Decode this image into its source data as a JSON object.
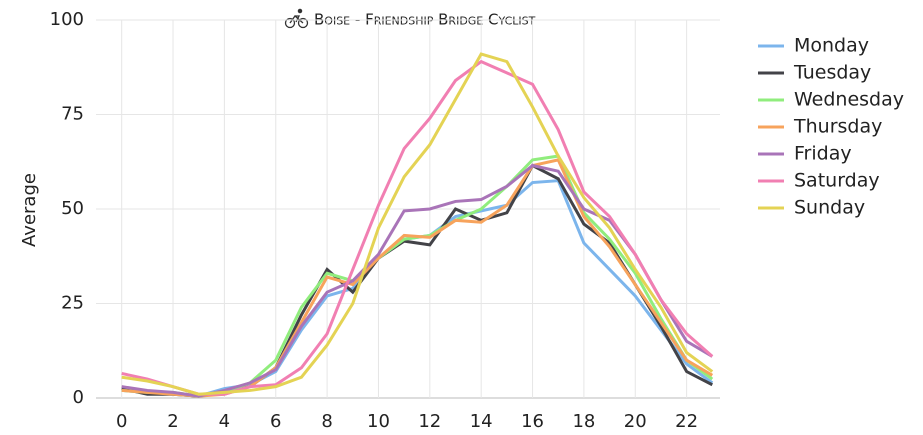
{
  "chart_data": {
    "type": "line",
    "title": "Boise - Friendship Bridge Cyclist",
    "y_label": "Average",
    "x": [
      0,
      1,
      2,
      3,
      4,
      5,
      6,
      7,
      8,
      9,
      10,
      11,
      12,
      13,
      14,
      15,
      16,
      17,
      18,
      19,
      20,
      21,
      22,
      23
    ],
    "xlim": [
      -1,
      23.3
    ],
    "xticks": [
      0,
      2,
      4,
      6,
      8,
      10,
      12,
      14,
      16,
      18,
      20,
      22
    ],
    "ylim": [
      0,
      100
    ],
    "yticks": [
      0,
      25,
      50,
      75,
      100
    ],
    "grid": true,
    "legend": "right",
    "series": [
      {
        "name": "Monday",
        "color": "#7cb5ec",
        "values": [
          2,
          1.5,
          1,
          0.5,
          2.5,
          3.5,
          7,
          18,
          27,
          29,
          37,
          42,
          43,
          48,
          49.5,
          51,
          57,
          57.5,
          41,
          34,
          27,
          18,
          9,
          4
        ]
      },
      {
        "name": "Tuesday",
        "color": "#434348",
        "values": [
          2.5,
          1,
          1,
          0.5,
          1.5,
          3,
          8,
          22,
          34,
          28,
          37,
          41.5,
          40.5,
          50,
          47,
          49,
          61.5,
          58,
          46,
          41,
          30,
          19,
          7,
          3.5
        ]
      },
      {
        "name": "Wednesday",
        "color": "#90ed7d",
        "values": [
          2,
          1.5,
          1.5,
          0.5,
          1.5,
          4,
          10,
          24,
          33,
          31,
          37,
          42,
          43,
          47,
          50,
          56,
          63,
          64,
          49,
          42,
          33,
          21,
          10,
          5
        ]
      },
      {
        "name": "Thursday",
        "color": "#f7a35c",
        "values": [
          2,
          1.5,
          1,
          0.5,
          1,
          3,
          8,
          20,
          32,
          30,
          37,
          43,
          42.5,
          47,
          46.5,
          51,
          61.5,
          63,
          48,
          40,
          30,
          20,
          10,
          6
        ]
      },
      {
        "name": "Friday",
        "color": "#a974b8",
        "values": [
          3,
          2,
          1.5,
          0.5,
          2,
          4,
          7.5,
          19,
          28,
          31,
          38,
          49.5,
          50,
          52,
          52.5,
          56,
          61.5,
          60,
          50,
          47,
          38,
          26,
          15,
          11
        ]
      },
      {
        "name": "Saturday",
        "color": "#f17fb2",
        "values": [
          6.5,
          5,
          3,
          1,
          1,
          3,
          3.5,
          8,
          17,
          34,
          51,
          66,
          74,
          84,
          89,
          86,
          83,
          71,
          54.5,
          48,
          38,
          26,
          17,
          11
        ]
      },
      {
        "name": "Sunday",
        "color": "#e4d354",
        "values": [
          5.5,
          4.5,
          3,
          1,
          1.5,
          2,
          3,
          5.5,
          14,
          25,
          45,
          58.5,
          67,
          79,
          91,
          89,
          77,
          64,
          53,
          45,
          34,
          24,
          12,
          7
        ]
      }
    ]
  }
}
